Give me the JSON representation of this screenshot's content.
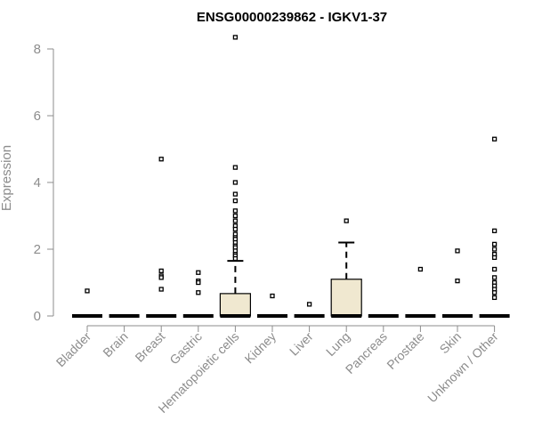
{
  "chart_data": {
    "type": "box",
    "title": "ENSG00000239862 - IGKV1-37",
    "xlabel": "",
    "ylabel": "Expression",
    "ylim": [
      0,
      8.5
    ],
    "yticks": [
      0,
      2,
      4,
      6,
      8
    ],
    "grid": false,
    "legend": "none",
    "box_fill": "#f0e8d0",
    "categories": [
      "Bladder",
      "Brain",
      "Breast",
      "Gastric",
      "Hematopoietic cells",
      "Kidney",
      "Liver",
      "Lung",
      "Pancreas",
      "Prostate",
      "Skin",
      "Unknown / Other"
    ],
    "boxes": [
      {
        "category": "Bladder",
        "q1": 0,
        "median": 0,
        "q3": 0,
        "whisker_low": 0,
        "whisker_high": 0,
        "outliers": [
          0.75
        ]
      },
      {
        "category": "Brain",
        "q1": 0,
        "median": 0,
        "q3": 0,
        "whisker_low": 0,
        "whisker_high": 0,
        "outliers": []
      },
      {
        "category": "Breast",
        "q1": 0,
        "median": 0,
        "q3": 0,
        "whisker_low": 0,
        "whisker_high": 0,
        "outliers": [
          4.7,
          1.35,
          1.2,
          1.15,
          0.8
        ]
      },
      {
        "category": "Gastric",
        "q1": 0,
        "median": 0,
        "q3": 0,
        "whisker_low": 0,
        "whisker_high": 0,
        "outliers": [
          1.3,
          1.05,
          1.0,
          0.7
        ]
      },
      {
        "category": "Hematopoietic cells",
        "q1": 0,
        "median": 0,
        "q3": 0.67,
        "whisker_low": 0,
        "whisker_high": 1.65,
        "outliers": [
          8.35,
          4.45,
          4.0,
          3.65,
          3.45,
          3.15,
          3.0,
          2.85,
          2.7,
          2.6,
          2.45,
          2.35,
          2.3,
          2.2,
          2.1,
          2.05,
          1.95,
          1.85,
          1.8,
          1.72
        ]
      },
      {
        "category": "Kidney",
        "q1": 0,
        "median": 0,
        "q3": 0,
        "whisker_low": 0,
        "whisker_high": 0,
        "outliers": [
          0.6
        ]
      },
      {
        "category": "Liver",
        "q1": 0,
        "median": 0,
        "q3": 0,
        "whisker_low": 0,
        "whisker_high": 0,
        "outliers": [
          0.35
        ]
      },
      {
        "category": "Lung",
        "q1": 0,
        "median": 0,
        "q3": 1.1,
        "whisker_low": 0,
        "whisker_high": 2.2,
        "outliers": [
          2.85
        ]
      },
      {
        "category": "Pancreas",
        "q1": 0,
        "median": 0,
        "q3": 0,
        "whisker_low": 0,
        "whisker_high": 0,
        "outliers": []
      },
      {
        "category": "Prostate",
        "q1": 0,
        "median": 0,
        "q3": 0,
        "whisker_low": 0,
        "whisker_high": 0,
        "outliers": [
          1.4
        ]
      },
      {
        "category": "Skin",
        "q1": 0,
        "median": 0,
        "q3": 0,
        "whisker_low": 0,
        "whisker_high": 0,
        "outliers": [
          1.95,
          1.05
        ]
      },
      {
        "category": "Unknown / Other",
        "q1": 0,
        "median": 0,
        "q3": 0,
        "whisker_low": 0,
        "whisker_high": 0,
        "outliers": [
          5.3,
          2.55,
          2.15,
          2.0,
          1.85,
          1.75,
          1.4,
          1.15,
          1.0,
          0.9,
          0.8,
          0.7,
          0.55
        ]
      }
    ]
  }
}
